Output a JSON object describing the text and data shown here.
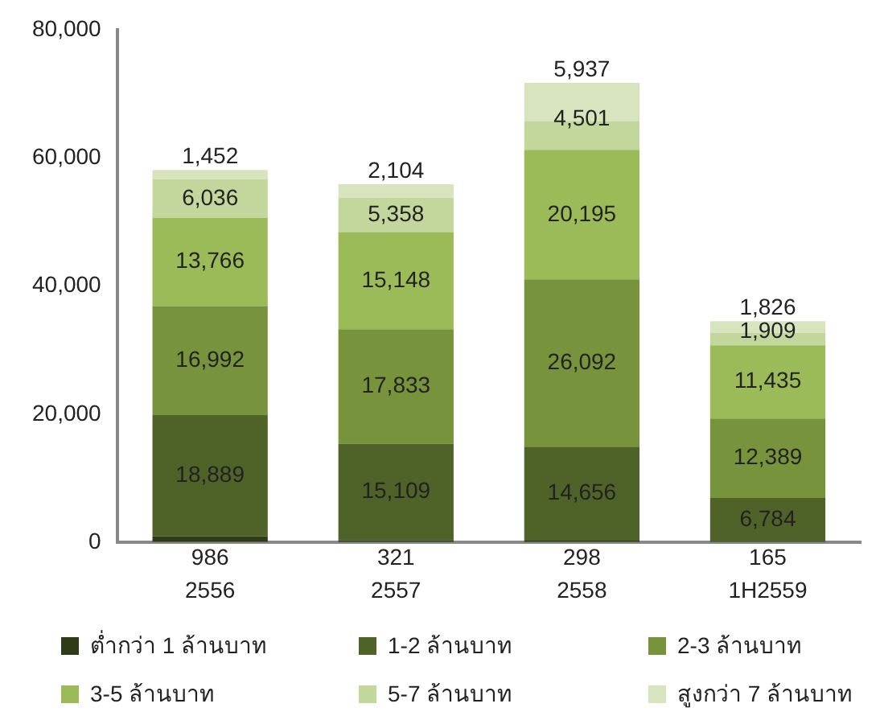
{
  "chart_data": {
    "type": "bar",
    "stacked": true,
    "categories": [
      "2556",
      "2557",
      "2558",
      "1H2559"
    ],
    "series": [
      {
        "name": "ต่ำกว่า 1 ล้านบาท",
        "color": "#2d3b17",
        "values": [
          986,
          321,
          298,
          165
        ],
        "value_labels": [
          "986",
          "321",
          "298",
          "165"
        ]
      },
      {
        "name": "1-2 ล้านบาท",
        "color": "#4f6228",
        "values": [
          18889,
          15109,
          14656,
          6784
        ],
        "value_labels": [
          "18,889",
          "15,109",
          "14,656",
          "6,784"
        ]
      },
      {
        "name": "2-3 ล้านบาท",
        "color": "#77933c",
        "values": [
          16992,
          17833,
          26092,
          12389
        ],
        "value_labels": [
          "16,992",
          "17,833",
          "26,092",
          "12,389"
        ]
      },
      {
        "name": "3-5 ล้านบาท",
        "color": "#9bbb59",
        "values": [
          13766,
          15148,
          20195,
          11435
        ],
        "value_labels": [
          "13,766",
          "15,148",
          "20,195",
          "11,435"
        ]
      },
      {
        "name": "5-7 ล้านบาท",
        "color": "#c3d69b",
        "values": [
          6036,
          5358,
          4501,
          1909
        ],
        "value_labels": [
          "6,036",
          "5,358",
          "4,501",
          "1,909"
        ]
      },
      {
        "name": "สูงกว่า 7 ล้านบาท",
        "color": "#d7e4bd",
        "values": [
          1452,
          2104,
          5937,
          1826
        ],
        "value_labels": [
          "1,452",
          "2,104",
          "5,937",
          "1,826"
        ]
      }
    ],
    "ylim": [
      0,
      80000
    ],
    "yticks": [
      {
        "value": 0,
        "label": "0"
      },
      {
        "value": 20000,
        "label": "20,000"
      },
      {
        "value": 40000,
        "label": "40,000"
      },
      {
        "value": 60000,
        "label": "60,000"
      },
      {
        "value": 80000,
        "label": "80,000"
      }
    ],
    "grid": false,
    "legend": "bottom"
  }
}
